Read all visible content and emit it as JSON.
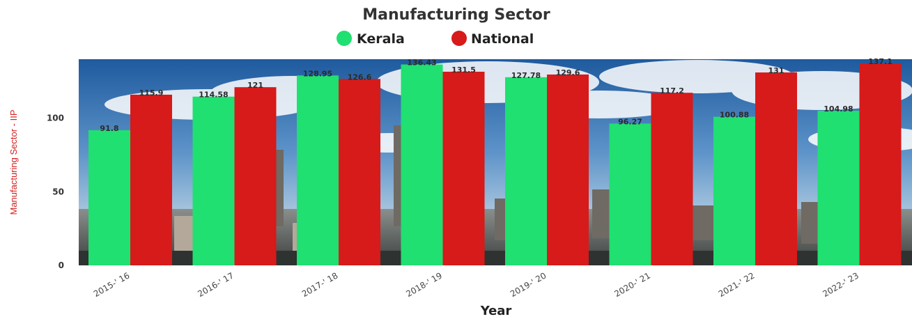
{
  "chart_data": {
    "type": "bar",
    "title": "Manufacturing Sector",
    "xlabel": "Year",
    "ylabel": "Manufacturing Sector - IIP",
    "categories": [
      "2015-' 16",
      "2016-' 17",
      "2017-' 18",
      "2018-' 19",
      "2019-' 20",
      "2020-' 21",
      "2021-' 22",
      "2022-' 23"
    ],
    "series": [
      {
        "name": "Kerala",
        "color": "#1fe070",
        "values": [
          91.8,
          114.58,
          128.95,
          136.43,
          127.78,
          96.27,
          100.88,
          104.98
        ],
        "labels": [
          "91.8",
          "114.58",
          "128.95",
          "136.43",
          "127.78",
          "96.27",
          "100.88",
          "104.98"
        ]
      },
      {
        "name": "National",
        "color": "#d71a1a",
        "values": [
          115.9,
          121,
          126.6,
          131.5,
          129.6,
          117.2,
          131,
          137.1
        ],
        "labels": [
          "115.9",
          "121",
          "126.6",
          "131.5",
          "129.6",
          "117.2",
          "131",
          "137.1"
        ]
      }
    ],
    "yticks": [
      0,
      50,
      100
    ],
    "ylim": [
      0,
      140
    ],
    "legend_position": "top-center",
    "grid": false,
    "background": "industrial factory photograph with blue sky"
  }
}
